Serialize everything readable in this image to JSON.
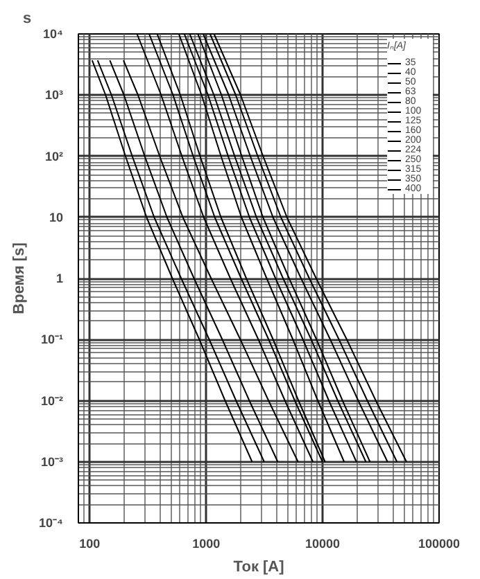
{
  "chart_data": {
    "type": "line",
    "xlabel": "Ток [A]",
    "ylabel": "Время [s]",
    "legend_title": "Iₙ[A]",
    "annotations": [
      "s"
    ],
    "log": "xy",
    "grid": true,
    "legend": "top right",
    "marker": "none",
    "line_style": "solid",
    "xlim": [
      80,
      100000
    ],
    "xticks": [
      100,
      1000,
      10000,
      100000
    ],
    "ylim": [
      0.0001,
      10000
    ],
    "yticks": [
      {
        "value": 10000,
        "label": "10⁴"
      },
      {
        "value": 1000,
        "label": "10³"
      },
      {
        "value": 100,
        "label": "10²"
      },
      10,
      1,
      {
        "value": 0.1,
        "label": "10⁻¹"
      },
      {
        "value": 0.01,
        "label": "10⁻²"
      },
      {
        "value": 0.001,
        "label": "10⁻³"
      },
      {
        "value": 0.0001,
        "label": "10⁻⁴"
      }
    ],
    "series": [
      {
        "name": "35",
        "color": "#000000",
        "x": [
          105,
          137,
          203,
          308,
          513,
          875,
          1455,
          2480
        ],
        "values": [
          3700,
          1000,
          100,
          10,
          1,
          0.1,
          0.01,
          0.001
        ]
      },
      {
        "name": "40",
        "color": "#000000",
        "x": [
          117,
          154,
          232,
          358,
          611,
          1064,
          1807,
          3150
        ],
        "values": [
          3700,
          1000,
          100,
          10,
          1,
          0.1,
          0.01,
          0.001
        ]
      },
      {
        "name": "50",
        "color": "#000000",
        "x": [
          149,
          197,
          297,
          461,
          787,
          1377,
          2350,
          4120
        ],
        "values": [
          3700,
          1000,
          100,
          10,
          1,
          0.1,
          0.01,
          0.001
        ]
      },
      {
        "name": "63",
        "color": "#000000",
        "x": [
          195,
          260,
          399,
          631,
          1104,
          1968,
          3436,
          6150
        ],
        "values": [
          3700,
          1000,
          100,
          10,
          1,
          0.1,
          0.01,
          0.001
        ]
      },
      {
        "name": "80",
        "color": "#000000",
        "x": [
          255,
          411,
          619,
          953,
          1614,
          2810,
          4750,
          8260
        ],
        "values": [
          10000,
          1000,
          100,
          10,
          1,
          0.1,
          0.01,
          0.001
        ]
      },
      {
        "name": "100",
        "color": "#000000",
        "x": [
          324,
          520,
          774,
          1186,
          2000,
          3444,
          5770,
          9970
        ],
        "values": [
          10000,
          1000,
          100,
          10,
          1,
          0.1,
          0.01,
          0.001
        ]
      },
      {
        "name": "125",
        "color": "#000000",
        "x": [
          380,
          601,
          887,
          1340,
          2213,
          3760,
          6210,
          10500
        ],
        "values": [
          10000,
          1000,
          100,
          10,
          1,
          0.1,
          0.01,
          0.001
        ]
      },
      {
        "name": "160",
        "color": "#000000",
        "x": [
          583,
          914,
          1342,
          2010,
          3311,
          5560,
          9100,
          15300
        ],
        "values": [
          10000,
          1000,
          100,
          10,
          1,
          0.1,
          0.01,
          0.001
        ]
      },
      {
        "name": "200",
        "color": "#000000",
        "x": [
          650,
          1038,
          1545,
          2355,
          3945,
          6780,
          11320,
          19500
        ],
        "values": [
          10000,
          1000,
          100,
          10,
          1,
          0.1,
          0.01,
          0.001
        ]
      },
      {
        "name": "224",
        "color": "#000000",
        "x": [
          723,
          1167,
          1758,
          2704,
          4580,
          7980,
          13490,
          23500
        ],
        "values": [
          10000,
          1000,
          100,
          10,
          1,
          0.1,
          0.01,
          0.001
        ]
      },
      {
        "name": "250",
        "color": "#000000",
        "x": [
          849,
          1355,
          2023,
          3076,
          5160,
          8870,
          14830,
          25500
        ],
        "values": [
          10000,
          1000,
          100,
          10,
          1,
          0.1,
          0.01,
          0.001
        ]
      },
      {
        "name": "315",
        "color": "#000000",
        "x": [
          944,
          1563,
          2393,
          3750,
          6530,
          11640,
          20230,
          36060
        ],
        "values": [
          10000,
          1000,
          100,
          10,
          1,
          0.1,
          0.01,
          0.001
        ]
      },
      {
        "name": "350",
        "color": "#000000",
        "x": [
          1081,
          1795,
          2773,
          4385,
          7690,
          13830,
          24210,
          43450
        ],
        "values": [
          10000,
          1000,
          100,
          10,
          1,
          0.1,
          0.01,
          0.001
        ]
      },
      {
        "name": "400",
        "color": "#000000",
        "x": [
          1170,
          1977,
          3083,
          4940,
          8810,
          16140,
          28640,
          52480
        ],
        "values": [
          10000,
          1000,
          100,
          10,
          1,
          0.1,
          0.01,
          0.001
        ]
      }
    ]
  }
}
